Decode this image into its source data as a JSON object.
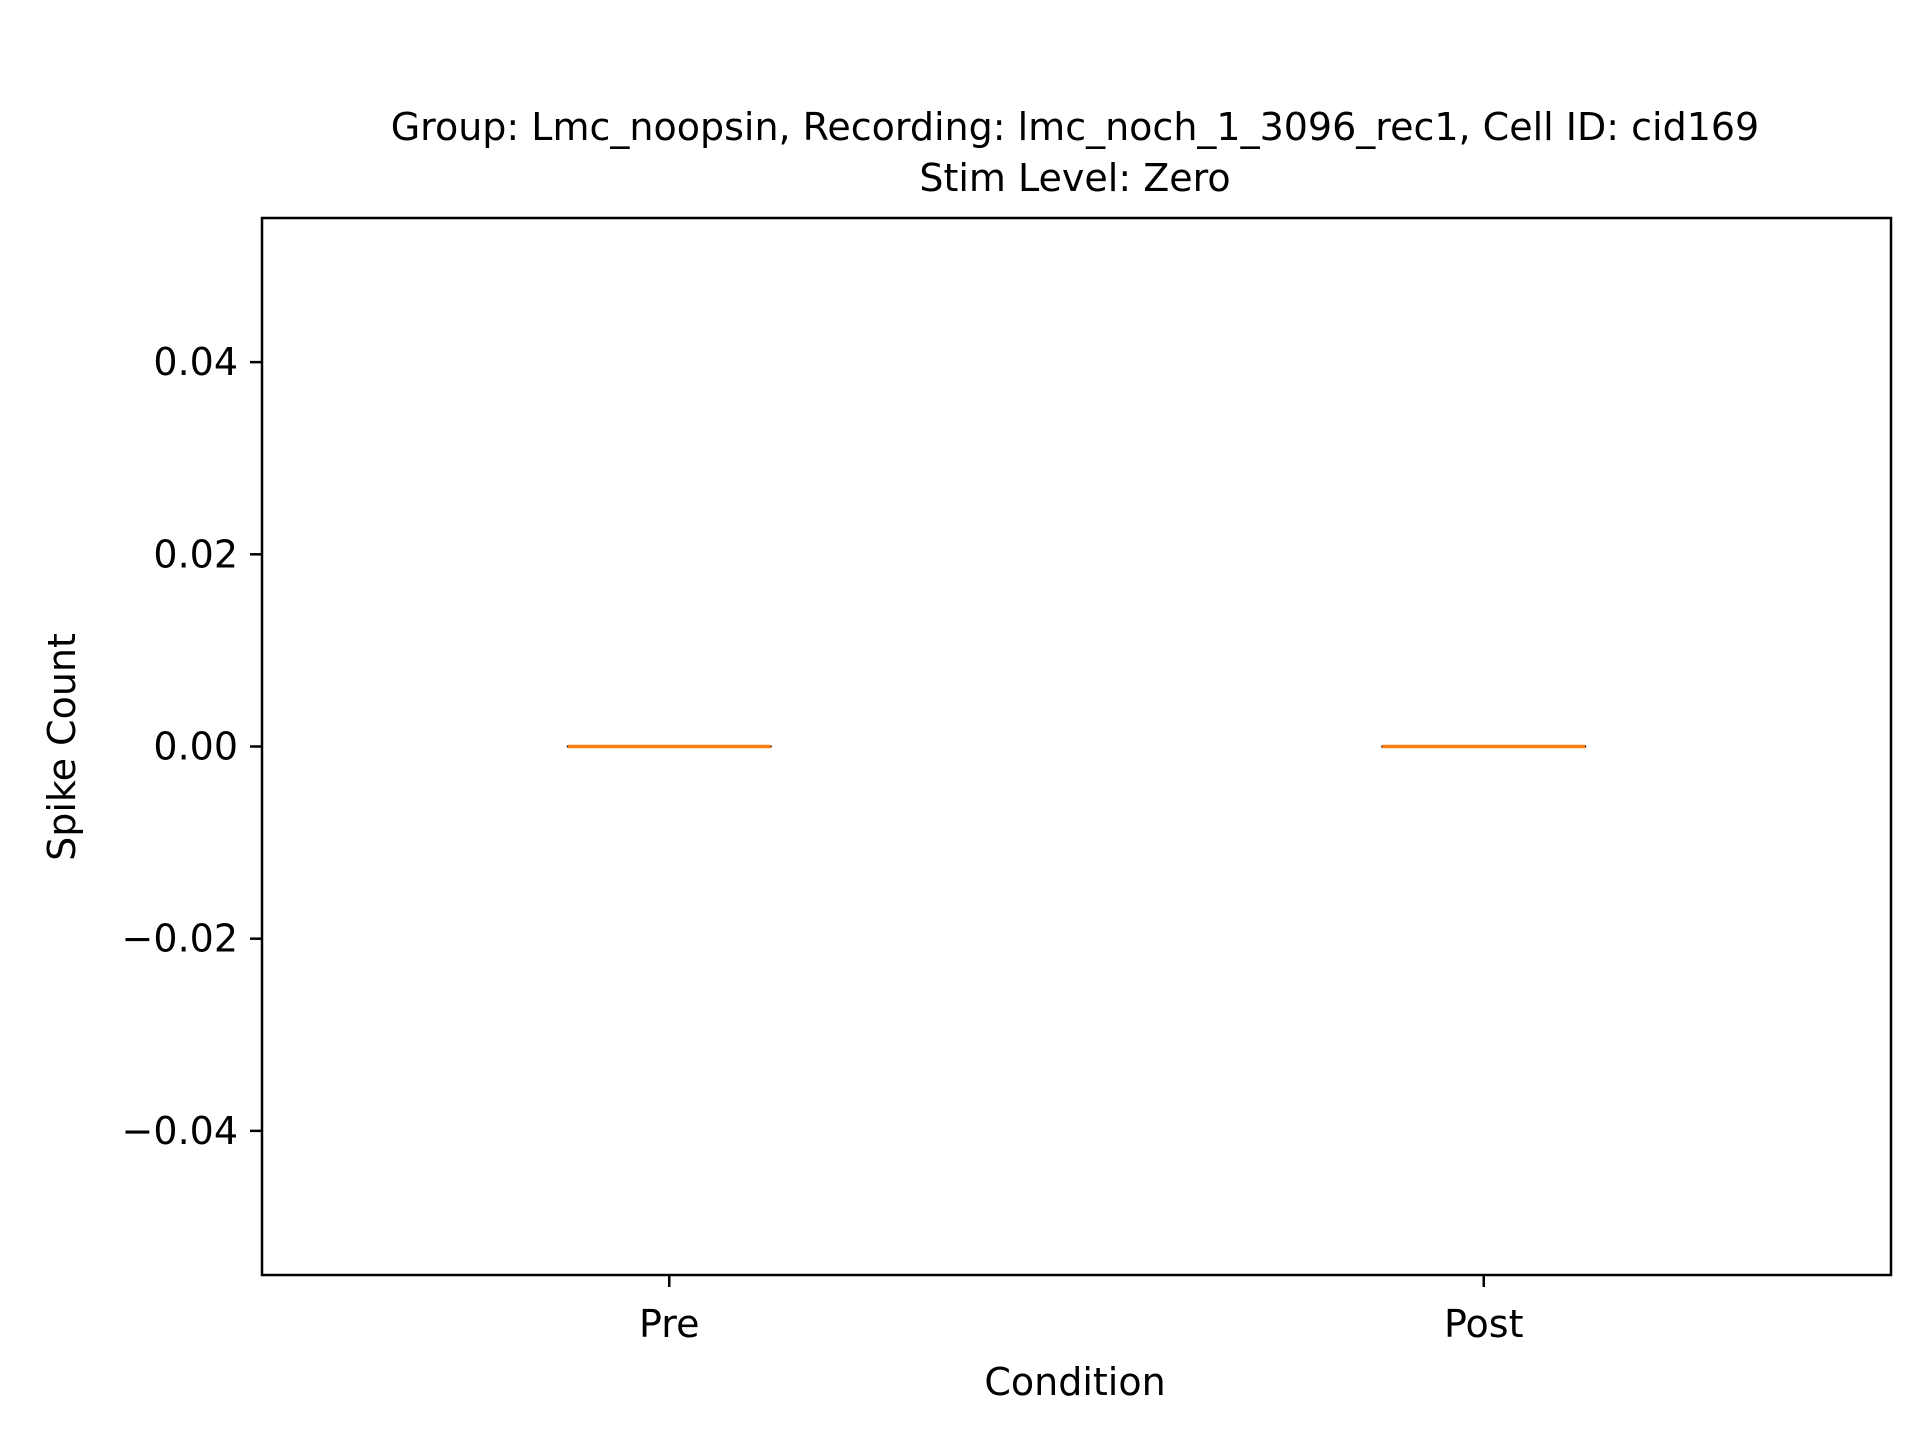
{
  "chart_data": {
    "type": "box",
    "title": "Group: Lmc_noopsin, Recording: lmc_noch_1_3096_rec1, Cell ID: cid169",
    "subtitle": "Stim Level: Zero",
    "xlabel": "Condition",
    "ylabel": "Spike Count",
    "categories": [
      "Pre",
      "Post"
    ],
    "ylim": [
      -0.055,
      0.055
    ],
    "yticks": [
      -0.04,
      -0.02,
      0.0,
      0.02,
      0.04
    ],
    "ytick_labels": [
      "−0.04",
      "−0.02",
      "0.00",
      "0.02",
      "0.04"
    ],
    "boxes": [
      {
        "category": "Pre",
        "min": 0,
        "q1": 0,
        "median": 0,
        "q3": 0,
        "max": 0
      },
      {
        "category": "Post",
        "min": 0,
        "q1": 0,
        "median": 0,
        "q3": 0,
        "max": 0
      }
    ],
    "colors": {
      "median": "#ff7f0e",
      "box": "#000000",
      "axes": "#000000"
    },
    "grid": false
  }
}
